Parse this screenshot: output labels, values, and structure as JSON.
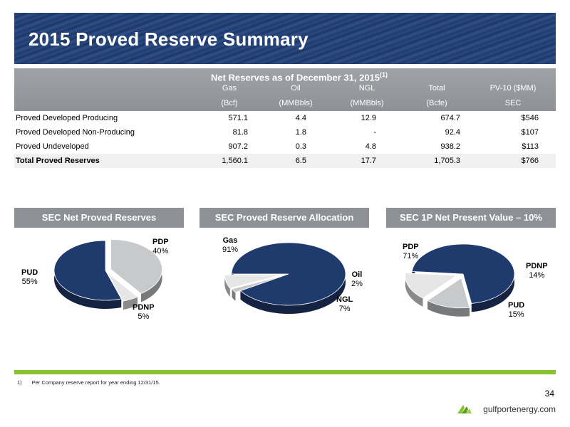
{
  "title": "2015 Proved Reserve Summary",
  "table": {
    "header_title": "Net Reserves as of  December 31, 2015",
    "header_sup": "(1)",
    "columns": [
      {
        "top": "Gas",
        "bottom": "(Bcf)"
      },
      {
        "top": "Oil",
        "bottom": "(MMBbls)"
      },
      {
        "top": "NGL",
        "bottom": "(MMBbls)"
      },
      {
        "top": "Total",
        "bottom": "(Bcfe)"
      },
      {
        "top": "PV-10 ($MM)",
        "bottom": "SEC"
      }
    ],
    "rows": [
      {
        "label": "Proved Developed Producing",
        "values": [
          "571.1",
          "4.4",
          "12.9",
          "674.7",
          "$546"
        ]
      },
      {
        "label": "Proved Developed Non-Producing",
        "values": [
          "81.8",
          "1.8",
          "-",
          "92.4",
          "$107"
        ]
      },
      {
        "label": "Proved Undeveloped",
        "values": [
          "907.2",
          "0.3",
          "4.8",
          "938.2",
          "$113"
        ]
      },
      {
        "label": "Total Proved Reserves",
        "values": [
          "1,560.1",
          "6.5",
          "17.7",
          "1,705.3",
          "$766"
        ]
      }
    ]
  },
  "pies": [
    {
      "title": "SEC Net Proved Reserves",
      "slices": [
        {
          "name": "PDP",
          "pct": 40,
          "label": "40%",
          "color": "#c8c9cb"
        },
        {
          "name": "PDNP",
          "pct": 5,
          "label": "5%",
          "color": "#e6e6e6"
        },
        {
          "name": "PUD",
          "pct": 55,
          "label": "55%",
          "color": "#1f3a6c"
        }
      ]
    },
    {
      "title": "SEC Proved Reserve Allocation",
      "slices": [
        {
          "name": "Gas",
          "pct": 91,
          "label": "91%",
          "color": "#1f3a6c"
        },
        {
          "name": "Oil",
          "pct": 2,
          "label": "2%",
          "color": "#c8c9cb"
        },
        {
          "name": "NGL",
          "pct": 7,
          "label": "7%",
          "color": "#e6e6e6"
        }
      ]
    },
    {
      "title": "SEC 1P Net Present Value – 10%",
      "slices": [
        {
          "name": "PDP",
          "pct": 71,
          "label": "71%",
          "color": "#1f3a6c"
        },
        {
          "name": "PDNP",
          "pct": 14,
          "label": "14%",
          "color": "#c8c9cb"
        },
        {
          "name": "PUD",
          "pct": 15,
          "label": "15%",
          "color": "#e6e6e6"
        }
      ]
    }
  ],
  "footnote": {
    "num": "1)",
    "text": "Per Company reserve report for year ending 12/31/15."
  },
  "page_number": "34",
  "logo_text": "gulfportenergy.com",
  "colors": {
    "banner": "#1f3a6c",
    "accent_green": "#86c232",
    "header_gray": "#8d9094"
  }
}
